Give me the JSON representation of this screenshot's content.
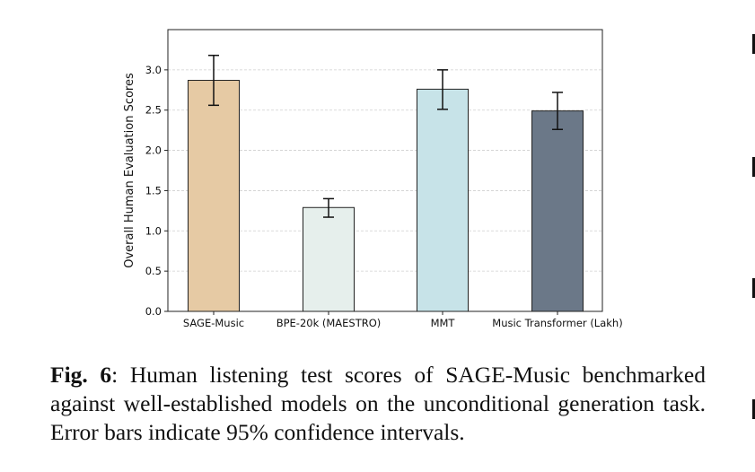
{
  "chart_data": {
    "type": "bar",
    "title": "",
    "xlabel": "",
    "ylabel": "Overall Human Evaluation Scores",
    "categories": [
      "SAGE-Music",
      "BPE-20k (MAESTRO)",
      "MMT",
      "Music Transformer (Lakh)"
    ],
    "values": [
      2.87,
      1.29,
      2.76,
      2.49
    ],
    "error_low": [
      2.56,
      1.17,
      2.51,
      2.26
    ],
    "error_high": [
      3.18,
      1.4,
      3.0,
      2.72
    ],
    "colors": [
      "#e6caa4",
      "#e6efec",
      "#c7e3e8",
      "#6b7888"
    ],
    "ylim": [
      0,
      3.5
    ],
    "yticks": [
      0.0,
      0.5,
      1.0,
      1.5,
      2.0,
      2.5,
      3.0
    ],
    "ytick_labels": [
      "0.0",
      "0.5",
      "1.0",
      "1.5",
      "2.0",
      "2.5",
      "3.0"
    ],
    "grid": "horizontal dashed",
    "legend": "none"
  },
  "caption": {
    "label": "Fig. 6",
    "text": ":  Human listening test scores of SAGE-Music benchmarked against well-established models on the unconditional generation task. Error bars indicate 95% confidence intervals."
  }
}
